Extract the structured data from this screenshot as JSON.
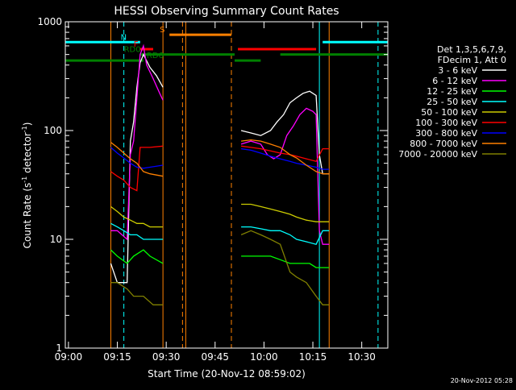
{
  "chart_data": {
    "type": "line",
    "title": "HESSI Observing Summary Count Rates",
    "xlabel": "Start Time (20-Nov-12 08:59:02)",
    "ylabel_main": "Count Rate (s",
    "ylabel_sup1": "-1",
    "ylabel_mid": " detector",
    "ylabel_end": ")",
    "yscale": "log",
    "ylim": [
      1,
      1000
    ],
    "xlim": [
      "08:59:02",
      "10:38:00"
    ],
    "x_ticks": [
      {
        "t": "09:00",
        "label": "09:00"
      },
      {
        "t": "09:15",
        "label": "09:15"
      },
      {
        "t": "09:30",
        "label": "09:30"
      },
      {
        "t": "09:45",
        "label": "09:45"
      },
      {
        "t": "10:00",
        "label": "10:00"
      },
      {
        "t": "10:15",
        "label": "10:15"
      },
      {
        "t": "10:30",
        "label": "10:30"
      }
    ],
    "y_ticks": [
      {
        "v": 1,
        "label": "1"
      },
      {
        "v": 10,
        "label": "10"
      },
      {
        "v": 100,
        "label": "100"
      },
      {
        "v": 1000,
        "label": "1000"
      }
    ],
    "legend_header": [
      "Det 1,3,5,6,7,9,",
      "FDecim 1, Att 0"
    ],
    "legend_position": "right",
    "timestamp": "20-Nov-2012 05:28",
    "series": [
      {
        "name": "3 - 6 keV",
        "color": "#ffffff",
        "segments": [
          [
            [
              "09:13",
              "6"
            ],
            [
              "09:15",
              "4"
            ],
            [
              "09:18",
              "4"
            ],
            [
              "09:19",
              "80"
            ],
            [
              "09:20",
              "120"
            ],
            [
              "09:21",
              "250"
            ],
            [
              "09:22",
              "420"
            ],
            [
              "09:23",
              "500"
            ],
            [
              "09:25",
              "380"
            ],
            [
              "09:27",
              "320"
            ],
            [
              "09:29",
              "250"
            ]
          ],
          [
            [
              "09:53",
              "100"
            ],
            [
              "09:56",
              "95"
            ],
            [
              "09:59",
              "90"
            ],
            [
              "10:02",
              "100"
            ],
            [
              "10:04",
              "120"
            ],
            [
              "10:06",
              "140"
            ],
            [
              "10:08",
              "180"
            ],
            [
              "10:10",
              "200"
            ],
            [
              "10:12",
              "220"
            ],
            [
              "10:14",
              "230"
            ],
            [
              "10:16",
              "210"
            ],
            [
              "10:17",
              "60"
            ],
            [
              "10:18",
              "40"
            ],
            [
              "10:20",
              "40"
            ]
          ]
        ]
      },
      {
        "name": "6 - 12 keV",
        "color": "#ff00ff",
        "segments": [
          [
            [
              "09:13",
              "12"
            ],
            [
              "09:15",
              "12"
            ],
            [
              "09:18",
              "10"
            ],
            [
              "09:19",
              "60"
            ],
            [
              "09:20",
              "80"
            ],
            [
              "09:21",
              "200"
            ],
            [
              "09:22",
              "500"
            ],
            [
              "09:23",
              "600"
            ],
            [
              "09:24",
              "400"
            ],
            [
              "09:26",
              "300"
            ],
            [
              "09:28",
              "220"
            ],
            [
              "09:29",
              "190"
            ]
          ],
          [
            [
              "09:53",
              "75"
            ],
            [
              "09:56",
              "80"
            ],
            [
              "09:59",
              "75"
            ],
            [
              "10:01",
              "60"
            ],
            [
              "10:03",
              "55"
            ],
            [
              "10:05",
              "60"
            ],
            [
              "10:07",
              "90"
            ],
            [
              "10:09",
              "110"
            ],
            [
              "10:11",
              "140"
            ],
            [
              "10:13",
              "160"
            ],
            [
              "10:15",
              "150"
            ],
            [
              "10:16",
              "140"
            ],
            [
              "10:17",
              "12"
            ],
            [
              "10:18",
              "9"
            ],
            [
              "10:20",
              "9"
            ]
          ]
        ]
      },
      {
        "name": "12 - 25 keV",
        "color": "#00ff00",
        "segments": [
          [
            [
              "09:13",
              "8"
            ],
            [
              "09:15",
              "7"
            ],
            [
              "09:18",
              "6"
            ],
            [
              "09:20",
              "7"
            ],
            [
              "09:23",
              "8"
            ],
            [
              "09:25",
              "7"
            ],
            [
              "09:29",
              "6"
            ]
          ],
          [
            [
              "09:53",
              "7"
            ],
            [
              "09:56",
              "7"
            ],
            [
              "09:59",
              "7"
            ],
            [
              "10:02",
              "7"
            ],
            [
              "10:05",
              "6.5"
            ],
            [
              "10:08",
              "6"
            ],
            [
              "10:11",
              "6"
            ],
            [
              "10:14",
              "6"
            ],
            [
              "10:16",
              "5.5"
            ],
            [
              "10:18",
              "5.5"
            ],
            [
              "10:20",
              "5.5"
            ]
          ]
        ]
      },
      {
        "name": "25 - 50 keV",
        "color": "#00ffff",
        "segments": [
          [
            [
              "09:13",
              "14"
            ],
            [
              "09:15",
              "13"
            ],
            [
              "09:17",
              "12"
            ],
            [
              "09:19",
              "11"
            ],
            [
              "09:21",
              "11"
            ],
            [
              "09:23",
              "10"
            ],
            [
              "09:25",
              "10"
            ],
            [
              "09:29",
              "10"
            ]
          ],
          [
            [
              "09:53",
              "13"
            ],
            [
              "09:56",
              "13"
            ],
            [
              "09:59",
              "12.5"
            ],
            [
              "10:02",
              "12"
            ],
            [
              "10:05",
              "12"
            ],
            [
              "10:08",
              "11"
            ],
            [
              "10:10",
              "10"
            ],
            [
              "10:13",
              "9.5"
            ],
            [
              "10:16",
              "9"
            ],
            [
              "10:18",
              "12"
            ],
            [
              "10:20",
              "12"
            ]
          ]
        ]
      },
      {
        "name": "50 - 100 keV",
        "color": "#cccc00",
        "segments": [
          [
            [
              "09:13",
              "20"
            ],
            [
              "09:15",
              "18"
            ],
            [
              "09:17",
              "16"
            ],
            [
              "09:19",
              "15"
            ],
            [
              "09:21",
              "14"
            ],
            [
              "09:23",
              "14"
            ],
            [
              "09:25",
              "13"
            ],
            [
              "09:29",
              "13"
            ]
          ],
          [
            [
              "09:53",
              "21"
            ],
            [
              "09:56",
              "21"
            ],
            [
              "09:59",
              "20"
            ],
            [
              "10:02",
              "19"
            ],
            [
              "10:05",
              "18"
            ],
            [
              "10:08",
              "17"
            ],
            [
              "10:10",
              "16"
            ],
            [
              "10:13",
              "15"
            ],
            [
              "10:16",
              "14.5"
            ],
            [
              "10:18",
              "14.5"
            ],
            [
              "10:20",
              "14.5"
            ]
          ]
        ]
      },
      {
        "name": "100 - 300 keV",
        "color": "#ff0000",
        "segments": [
          [
            [
              "09:13",
              "42"
            ],
            [
              "09:15",
              "38"
            ],
            [
              "09:17",
              "35"
            ],
            [
              "09:19",
              "30"
            ],
            [
              "09:21",
              "28"
            ],
            [
              "09:22",
              "70"
            ],
            [
              "09:25",
              "70"
            ],
            [
              "09:29",
              "72"
            ]
          ],
          [
            [
              "09:53",
              "72"
            ],
            [
              "09:56",
              "70"
            ],
            [
              "09:59",
              "68"
            ],
            [
              "10:02",
              "65"
            ],
            [
              "10:05",
              "62"
            ],
            [
              "10:08",
              "60"
            ],
            [
              "10:10",
              "58"
            ],
            [
              "10:13",
              "55"
            ],
            [
              "10:16",
              "52"
            ],
            [
              "10:18",
              "68"
            ],
            [
              "10:20",
              "68"
            ]
          ]
        ]
      },
      {
        "name": "300 - 800 keV",
        "color": "#0000ff",
        "segments": [
          [
            [
              "09:13",
              "70"
            ],
            [
              "09:15",
              "62"
            ],
            [
              "09:17",
              "56"
            ],
            [
              "09:19",
              "50"
            ],
            [
              "09:21",
              "46"
            ],
            [
              "09:23",
              "45"
            ],
            [
              "09:25",
              "46"
            ],
            [
              "09:29",
              "48"
            ]
          ],
          [
            [
              "09:53",
              "68"
            ],
            [
              "09:56",
              "66"
            ],
            [
              "09:59",
              "62"
            ],
            [
              "10:02",
              "58"
            ],
            [
              "10:05",
              "55"
            ],
            [
              "10:08",
              "52"
            ],
            [
              "10:10",
              "50"
            ],
            [
              "10:13",
              "48"
            ],
            [
              "10:16",
              "46"
            ],
            [
              "10:18",
              "44"
            ],
            [
              "10:20",
              "44"
            ]
          ]
        ]
      },
      {
        "name": "800 - 7000 keV",
        "color": "#ff8000",
        "segments": [
          [
            [
              "09:13",
              "78"
            ],
            [
              "09:15",
              "70"
            ],
            [
              "09:17",
              "62"
            ],
            [
              "09:19",
              "55"
            ],
            [
              "09:21",
              "50"
            ],
            [
              "09:23",
              "42"
            ],
            [
              "09:25",
              "40"
            ],
            [
              "09:29",
              "38"
            ]
          ],
          [
            [
              "09:53",
              "80"
            ],
            [
              "09:56",
              "82"
            ],
            [
              "09:59",
              "80"
            ],
            [
              "10:02",
              "75"
            ],
            [
              "10:05",
              "70"
            ],
            [
              "10:08",
              "60"
            ],
            [
              "10:10",
              "56"
            ],
            [
              "10:13",
              "48"
            ],
            [
              "10:16",
              "42"
            ],
            [
              "10:18",
              "40"
            ],
            [
              "10:20",
              "40"
            ]
          ]
        ]
      },
      {
        "name": "7000 - 20000 keV",
        "color": "#808000",
        "segments": [
          [
            [
              "09:13",
              "4"
            ],
            [
              "09:15",
              "4"
            ],
            [
              "09:18",
              "3.5"
            ],
            [
              "09:20",
              "3"
            ],
            [
              "09:23",
              "3"
            ],
            [
              "09:26",
              "2.5"
            ],
            [
              "09:29",
              "2.5"
            ]
          ],
          [
            [
              "09:53",
              "11"
            ],
            [
              "09:56",
              "12"
            ],
            [
              "09:59",
              "11"
            ],
            [
              "10:02",
              "10"
            ],
            [
              "10:05",
              "9"
            ],
            [
              "10:08",
              "5"
            ],
            [
              "10:10",
              "4.5"
            ],
            [
              "10:13",
              "4"
            ],
            [
              "10:16",
              "3"
            ],
            [
              "10:18",
              "2.5"
            ],
            [
              "10:20",
              "2.5"
            ]
          ]
        ]
      }
    ],
    "flag_bars": [
      {
        "label": "N",
        "color": "#00ffff",
        "level": 650,
        "label_t": "09:16",
        "spans": [
          [
            "08:59:02",
            "09:22"
          ],
          [
            "10:18",
            "10:38"
          ]
        ]
      },
      {
        "label": "S",
        "color": "#ff8000",
        "level": 760,
        "label_t": "09:28",
        "spans": [
          [
            "09:31",
            "09:50"
          ]
        ]
      },
      {
        "label": "F",
        "color": "#ff0000",
        "level": 560,
        "label_t": "09:20",
        "spans": [
          [
            "09:22",
            "09:26"
          ],
          [
            "09:52",
            "10:16"
          ]
        ]
      },
      {
        "label": "RD0",
        "color": "#008000",
        "level": 500,
        "label_t": "09:17",
        "spans": [
          [
            "09:22",
            "09:51"
          ],
          [
            "10:05",
            "10:38"
          ]
        ]
      },
      {
        "label": "RD6",
        "color": "#008000",
        "level": 440,
        "label_t": "09:24",
        "spans": [
          [
            "08:59:02",
            "09:23"
          ],
          [
            "09:51",
            "09:59"
          ]
        ]
      }
    ],
    "vlines": [
      {
        "t": "09:13",
        "color": "#ff8000",
        "style": "solid"
      },
      {
        "t": "09:17",
        "color": "#00ffff",
        "style": "dashed"
      },
      {
        "t": "09:29",
        "color": "#ff8000",
        "style": "solid"
      },
      {
        "t": "09:35",
        "color": "#ff8000",
        "style": "dashed"
      },
      {
        "t": "09:36",
        "color": "#ff8000",
        "style": "solid"
      },
      {
        "t": "09:50",
        "color": "#ff8000",
        "style": "dashed"
      },
      {
        "t": "10:17",
        "color": "#00ffff",
        "style": "solid"
      },
      {
        "t": "10:20",
        "color": "#ff8000",
        "style": "solid"
      },
      {
        "t": "10:35",
        "color": "#00ffff",
        "style": "dashed"
      }
    ]
  }
}
